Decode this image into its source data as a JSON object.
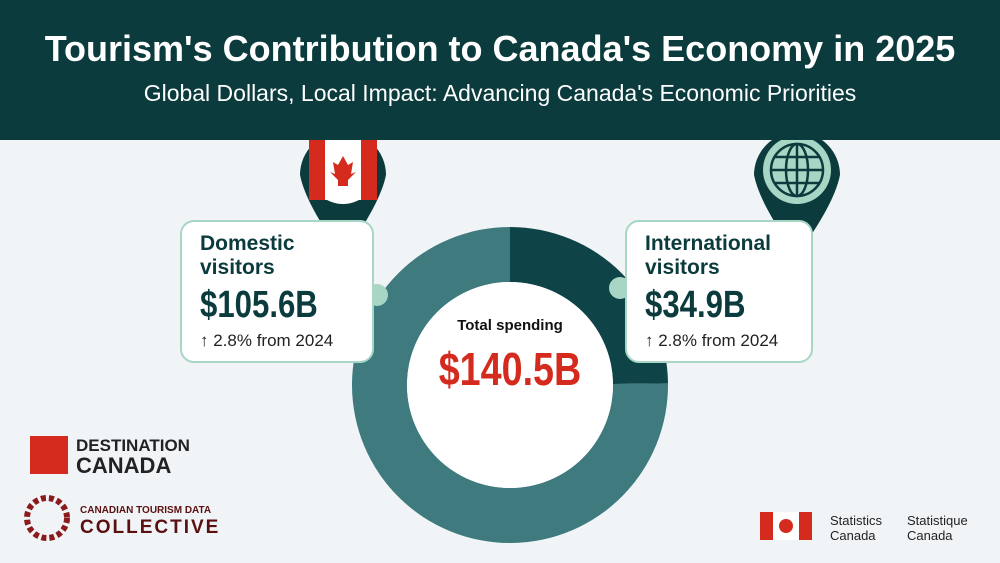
{
  "header": {
    "title": "Tourism's Contribution to Canada's Economy in 2025",
    "subtitle": "Global Dollars, Local Impact: Advancing Canada's Economic Priorities"
  },
  "chart_data": {
    "type": "donut",
    "categories": [
      "Domestic visitors",
      "International visitors"
    ],
    "values": [
      105.6,
      34.9
    ],
    "value_labels": [
      "$105.6B",
      "$34.9B"
    ],
    "colors": [
      "#3e7a7e",
      "#0e4447"
    ],
    "changes": [
      "↑ 2.8% from 2024",
      "↑ 2.8% from 2024"
    ],
    "center_title": "Total spending",
    "total": {
      "value": 140.5,
      "label": "$140.5B"
    }
  },
  "logos": {
    "destination": [
      "DESTINATION",
      "CANADA"
    ],
    "collective": [
      "CANADIAN TOURISM DATA",
      "COLLECTIVE"
    ],
    "statcan": [
      "Statistics",
      "Canada",
      "Statistique",
      "Canada"
    ]
  }
}
